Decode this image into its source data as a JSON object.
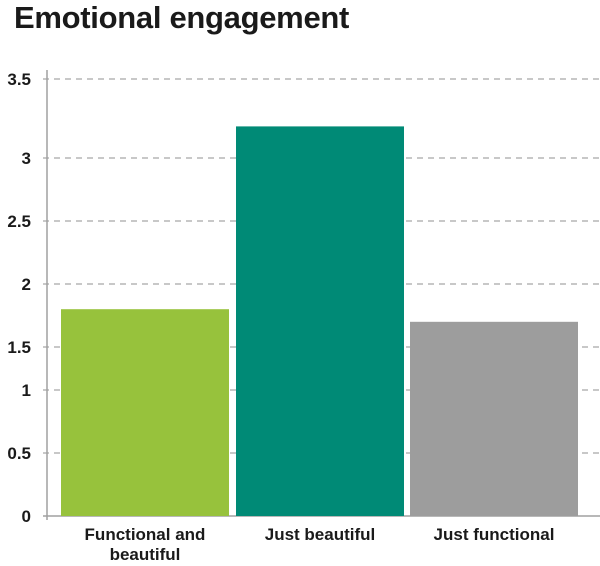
{
  "chart_data": {
    "type": "bar",
    "title": "Emotional engagement",
    "xlabel": "",
    "ylabel": "",
    "ylim": [
      0,
      3.5
    ],
    "yticks": [
      0,
      0.5,
      1,
      1.5,
      2,
      2.5,
      3,
      3.5
    ],
    "ytick_labels": [
      "0",
      "0.5",
      "1",
      "1.5",
      "2",
      "2.5",
      "3",
      "3.5"
    ],
    "grid": true,
    "categories": [
      [
        "Functional and",
        "beautiful"
      ],
      [
        "Just beautiful"
      ],
      [
        "Just functional"
      ]
    ],
    "values": [
      1.8,
      3.2,
      1.7
    ],
    "colors": [
      "#97c23c",
      "#008a76",
      "#9d9d9d"
    ]
  }
}
